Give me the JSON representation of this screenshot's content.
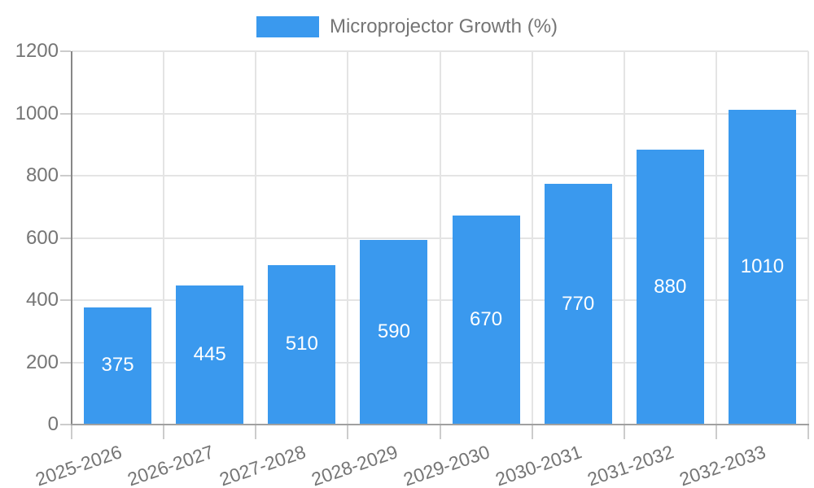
{
  "chart_data": {
    "type": "bar",
    "title": "",
    "legend": {
      "label": "Microprojector Growth (%)",
      "position": "top-center"
    },
    "categories": [
      "2025-2026",
      "2026-2027",
      "2027-2028",
      "2028-2029",
      "2029-2030",
      "2030-2031",
      "2031-2032",
      "2032-2033"
    ],
    "values": [
      375,
      445,
      510,
      590,
      670,
      770,
      880,
      1010
    ],
    "xlabel": "",
    "ylabel": "",
    "ylim": [
      0,
      1200
    ],
    "yticks": [
      0,
      200,
      400,
      600,
      800,
      1000,
      1200
    ],
    "grid": true,
    "bar_color": "#3A99EE",
    "value_label_color": "#FFFFFF",
    "axis_text_color": "#757575",
    "gridline_color": "#E4E4E4",
    "tick_color": "#CCCCCC"
  }
}
